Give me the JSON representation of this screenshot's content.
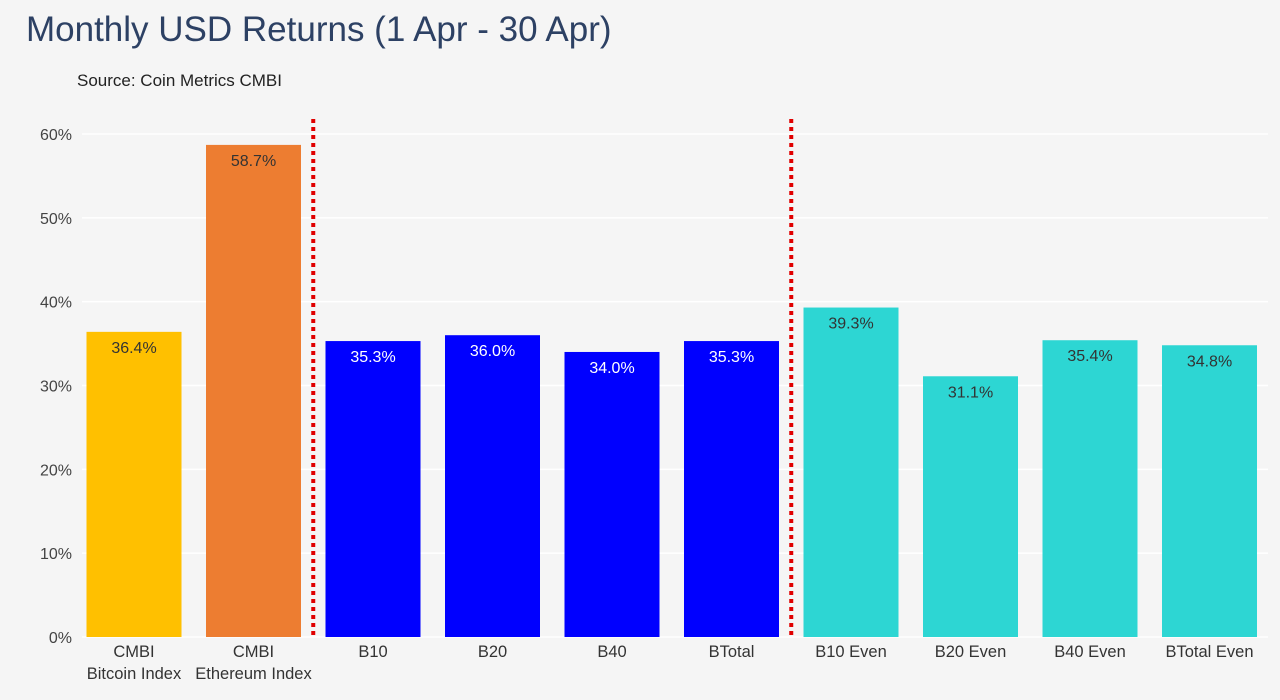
{
  "chart_data": {
    "type": "bar",
    "title": "Monthly USD Returns (1 Apr - 30 Apr)",
    "subtitle": "Source: Coin Metrics CMBI",
    "xlabel": "",
    "ylabel": "",
    "ylim": [
      0,
      0.6
    ],
    "yticks": [
      0,
      0.1,
      0.2,
      0.3,
      0.4,
      0.5,
      0.6
    ],
    "ytick_labels": [
      "0%",
      "10%",
      "20%",
      "30%",
      "40%",
      "50%",
      "60%"
    ],
    "grid": true,
    "categories": [
      [
        "CMBI",
        "Bitcoin Index"
      ],
      [
        "CMBI",
        "Ethereum Index"
      ],
      [
        "B10"
      ],
      [
        "B20"
      ],
      [
        "B40"
      ],
      [
        "BTotal"
      ],
      [
        "B10 Even"
      ],
      [
        "B20 Even"
      ],
      [
        "B40 Even"
      ],
      [
        "BTotal Even"
      ]
    ],
    "values": [
      0.364,
      0.587,
      0.353,
      0.36,
      0.34,
      0.353,
      0.393,
      0.311,
      0.354,
      0.348
    ],
    "data_labels": [
      "36.4%",
      "58.7%",
      "35.3%",
      "36.0%",
      "34.0%",
      "35.3%",
      "39.3%",
      "31.1%",
      "35.4%",
      "34.8%"
    ],
    "colors": [
      "#ffc000",
      "#ed7d31",
      "#0000ff",
      "#0000ff",
      "#0000ff",
      "#0000ff",
      "#2dd6d3",
      "#2dd6d3",
      "#2dd6d3",
      "#2dd6d3"
    ],
    "label_colors": [
      "#333333",
      "#333333",
      "#ffffff",
      "#ffffff",
      "#ffffff",
      "#ffffff",
      "#333333",
      "#333333",
      "#333333",
      "#333333"
    ],
    "separator_color": "#e00000",
    "separators_after_category": [
      1,
      5
    ]
  }
}
